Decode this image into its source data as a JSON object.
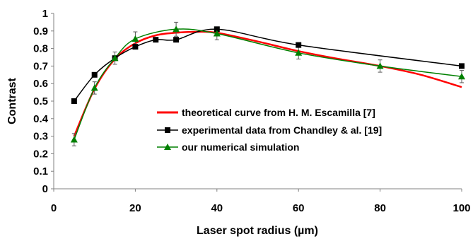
{
  "chart_data": {
    "type": "line",
    "xlabel": "Laser spot radius (µm)",
    "ylabel": "Contrast",
    "xlim": [
      0,
      100
    ],
    "ylim": [
      0,
      1
    ],
    "xticks": [
      0,
      20,
      40,
      60,
      80,
      100
    ],
    "xtick_labels": [
      "0",
      "20",
      "40",
      "60",
      "80",
      "100"
    ],
    "yticks": [
      0,
      0.1,
      0.2,
      0.3,
      0.4,
      0.5,
      0.6,
      0.7,
      0.8,
      0.9,
      1
    ],
    "ytick_labels": [
      "0",
      "0.1",
      "0.2",
      "0.3",
      "0.4",
      "0.5",
      "0.6",
      "0.7",
      "0.8",
      "0.9",
      "1"
    ],
    "grid": false,
    "legend_position": "center-right",
    "series": [
      {
        "name": "theoretical curve from H. M. Escamilla [7]",
        "color": "#ff0000",
        "marker": "none",
        "x": [
          5,
          10,
          15,
          20,
          25,
          30,
          35,
          40,
          50,
          60,
          70,
          80,
          90,
          100
        ],
        "y": [
          0.3,
          0.57,
          0.74,
          0.83,
          0.875,
          0.89,
          0.895,
          0.89,
          0.84,
          0.785,
          0.74,
          0.7,
          0.65,
          0.58
        ]
      },
      {
        "name": "experimental data from Chandley & al. [19]",
        "color": "#000000",
        "marker": "square",
        "x": [
          5,
          10,
          15,
          20,
          25,
          30,
          40,
          60,
          100
        ],
        "y": [
          0.5,
          0.65,
          0.745,
          0.81,
          0.85,
          0.85,
          0.91,
          0.82,
          0.7
        ]
      },
      {
        "name": "our numerical simulation",
        "color": "#008000",
        "marker": "triangle",
        "x": [
          5,
          10,
          15,
          20,
          30,
          40,
          60,
          80,
          100
        ],
        "y": [
          0.28,
          0.575,
          0.745,
          0.855,
          0.91,
          0.885,
          0.775,
          0.7,
          0.64
        ],
        "error": [
          0.035,
          0.035,
          0.035,
          0.04,
          0.04,
          0.035,
          0.035,
          0.035,
          0.035
        ]
      }
    ]
  }
}
